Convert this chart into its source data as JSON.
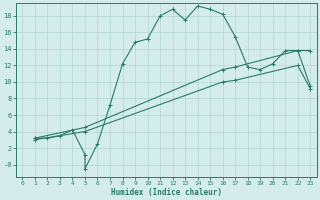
{
  "xlabel": "Humidex (Indice chaleur)",
  "bg_color": "#d4ecec",
  "grid_color": "#b8d8d8",
  "line_color": "#2a7a6a",
  "xlim": [
    -0.5,
    23.5
  ],
  "ylim": [
    -1.5,
    19.5
  ],
  "xticks": [
    0,
    1,
    2,
    3,
    4,
    5,
    6,
    7,
    8,
    9,
    10,
    11,
    12,
    13,
    14,
    15,
    16,
    17,
    18,
    19,
    20,
    21,
    22,
    23
  ],
  "yticks": [
    0,
    2,
    4,
    6,
    8,
    10,
    12,
    14,
    16,
    18
  ],
  "ytick_labels": [
    "-0",
    "2",
    "4",
    "6",
    "8",
    "10",
    "12",
    "14",
    "16",
    "18"
  ],
  "curve1_x": [
    1,
    2,
    3,
    4,
    5,
    5,
    6,
    7,
    8,
    9,
    10,
    11,
    12,
    13,
    14,
    15,
    16,
    17,
    18,
    19,
    20,
    21,
    22,
    23
  ],
  "curve1_y": [
    3.2,
    3.2,
    3.5,
    4.2,
    1.2,
    -0.5,
    2.5,
    7.2,
    12.2,
    14.8,
    15.2,
    18.0,
    18.8,
    17.5,
    19.2,
    18.8,
    18.2,
    15.5,
    11.8,
    11.5,
    12.2,
    13.8,
    13.8,
    13.8
  ],
  "curve2_x": [
    1,
    5,
    16,
    17,
    22,
    23
  ],
  "curve2_y": [
    3.2,
    4.5,
    11.5,
    11.8,
    13.8,
    9.5
  ],
  "curve3_x": [
    1,
    5,
    16,
    17,
    22,
    23
  ],
  "curve3_y": [
    3.0,
    4.0,
    10.0,
    10.2,
    12.0,
    9.2
  ]
}
